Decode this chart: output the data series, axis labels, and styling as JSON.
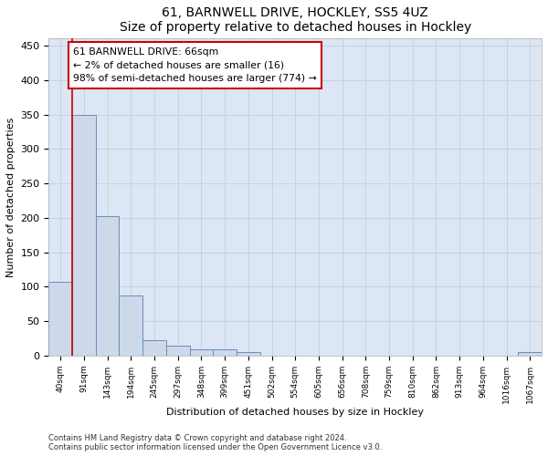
{
  "title1": "61, BARNWELL DRIVE, HOCKLEY, SS5 4UZ",
  "title2": "Size of property relative to detached houses in Hockley",
  "xlabel": "Distribution of detached houses by size in Hockley",
  "ylabel": "Number of detached properties",
  "categories": [
    "40sqm",
    "91sqm",
    "143sqm",
    "194sqm",
    "245sqm",
    "297sqm",
    "348sqm",
    "399sqm",
    "451sqm",
    "502sqm",
    "554sqm",
    "605sqm",
    "656sqm",
    "708sqm",
    "759sqm",
    "810sqm",
    "862sqm",
    "913sqm",
    "964sqm",
    "1016sqm",
    "1067sqm"
  ],
  "values": [
    107,
    349,
    203,
    88,
    23,
    14,
    9,
    9,
    5,
    0,
    0,
    0,
    0,
    0,
    0,
    0,
    0,
    0,
    0,
    0,
    5
  ],
  "bar_color": "#cdd8ea",
  "bar_edge_color": "#6b8cba",
  "annotation_box_text": "61 BARNWELL DRIVE: 66sqm\n← 2% of detached houses are smaller (16)\n98% of semi-detached houses are larger (774) →",
  "annotation_box_color": "#ffffff",
  "annotation_box_edge_color": "#cc0000",
  "red_line_x": 0.5,
  "ylim": [
    0,
    460
  ],
  "yticks": [
    0,
    50,
    100,
    150,
    200,
    250,
    300,
    350,
    400,
    450
  ],
  "footnote1": "Contains HM Land Registry data © Crown copyright and database right 2024.",
  "footnote2": "Contains public sector information licensed under the Open Government Licence v3.0.",
  "bg_color": "#ffffff",
  "axes_bg_color": "#dce6f5",
  "grid_color": "#c0c8d8"
}
